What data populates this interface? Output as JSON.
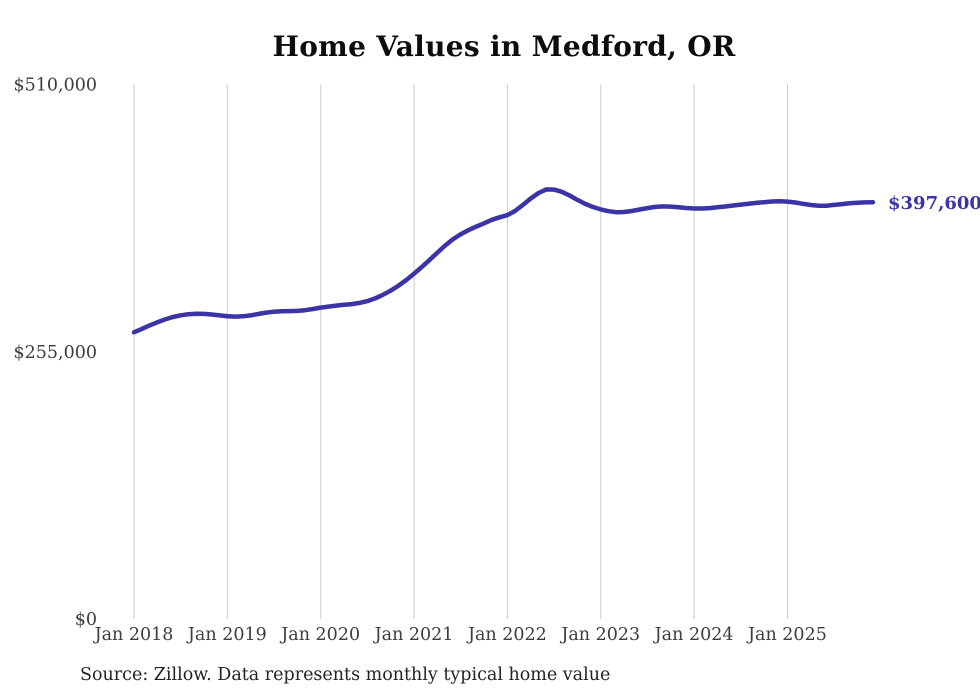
{
  "chart_data": {
    "type": "line",
    "title": "Home Values in Medford, OR",
    "source": "Source: Zillow. Data represents monthly typical home value",
    "xlabel": "",
    "ylabel": "",
    "ylim": [
      0,
      510000
    ],
    "grid": "vertical-only",
    "legend": "none",
    "end_label": "$397,600",
    "last_value": 397600,
    "y_ticks": [
      {
        "label": "$0",
        "value": 0
      },
      {
        "label": "$255,000",
        "value": 255000
      },
      {
        "label": "$510,000",
        "value": 510000
      }
    ],
    "x_ticks": [
      "Jan 2018",
      "Jan 2019",
      "Jan 2020",
      "Jan 2021",
      "Jan 2022",
      "Jan 2023",
      "Jan 2024",
      "Jan 2025"
    ],
    "x": [
      "2018-01",
      "2018-02",
      "2018-03",
      "2018-04",
      "2018-05",
      "2018-06",
      "2018-07",
      "2018-08",
      "2018-09",
      "2018-10",
      "2018-11",
      "2018-12",
      "2019-01",
      "2019-02",
      "2019-03",
      "2019-04",
      "2019-05",
      "2019-06",
      "2019-07",
      "2019-08",
      "2019-09",
      "2019-10",
      "2019-11",
      "2019-12",
      "2020-01",
      "2020-02",
      "2020-03",
      "2020-04",
      "2020-05",
      "2020-06",
      "2020-07",
      "2020-08",
      "2020-09",
      "2020-10",
      "2020-11",
      "2020-12",
      "2021-01",
      "2021-02",
      "2021-03",
      "2021-04",
      "2021-05",
      "2021-06",
      "2021-07",
      "2021-08",
      "2021-09",
      "2021-10",
      "2021-11",
      "2021-12",
      "2022-01",
      "2022-02",
      "2022-03",
      "2022-04",
      "2022-05",
      "2022-06",
      "2022-07",
      "2022-08",
      "2022-09",
      "2022-10",
      "2022-11",
      "2022-12",
      "2023-01",
      "2023-02",
      "2023-03",
      "2023-04",
      "2023-05",
      "2023-06",
      "2023-07",
      "2023-08",
      "2023-09",
      "2023-10",
      "2023-11",
      "2023-12",
      "2024-01",
      "2024-02",
      "2024-03",
      "2024-04",
      "2024-05",
      "2024-06",
      "2024-07",
      "2024-08",
      "2024-09",
      "2024-10",
      "2024-11",
      "2024-12",
      "2025-01",
      "2025-02",
      "2025-03",
      "2025-04",
      "2025-05",
      "2025-06",
      "2025-07",
      "2025-08",
      "2025-09",
      "2025-10",
      "2025-11",
      "2025-12"
    ],
    "values": [
      273600,
      276800,
      280100,
      283100,
      285900,
      288200,
      289800,
      290800,
      291200,
      291100,
      290500,
      289700,
      288900,
      288500,
      288800,
      289700,
      291100,
      292400,
      293200,
      293600,
      293800,
      294000,
      294600,
      295800,
      297100,
      298100,
      299000,
      299800,
      300500,
      301600,
      303300,
      305900,
      309300,
      313300,
      318000,
      323500,
      329500,
      335900,
      342600,
      349600,
      356400,
      362300,
      367200,
      371100,
      374400,
      377600,
      380900,
      383300,
      385400,
      389400,
      395100,
      401200,
      406500,
      409900,
      409700,
      407600,
      404100,
      399900,
      396100,
      393100,
      390800,
      389100,
      388200,
      388300,
      389300,
      390700,
      392100,
      393200,
      393700,
      393500,
      392900,
      392200,
      391700,
      391700,
      392100,
      392800,
      393600,
      394500,
      395400,
      396200,
      397000,
      397700,
      398400,
      398600,
      398300,
      397400,
      396200,
      395000,
      394300,
      394400,
      395100,
      395900,
      396600,
      397200,
      397500,
      397600
    ],
    "colors": {
      "line": "#3b34a6",
      "end_label": "#3b34a6",
      "grid": "#cbcbcb",
      "tick_text": "#3d3d3d",
      "title_text": "#0d0d0d",
      "source_text": "#232323",
      "background": "#ffffff"
    }
  }
}
